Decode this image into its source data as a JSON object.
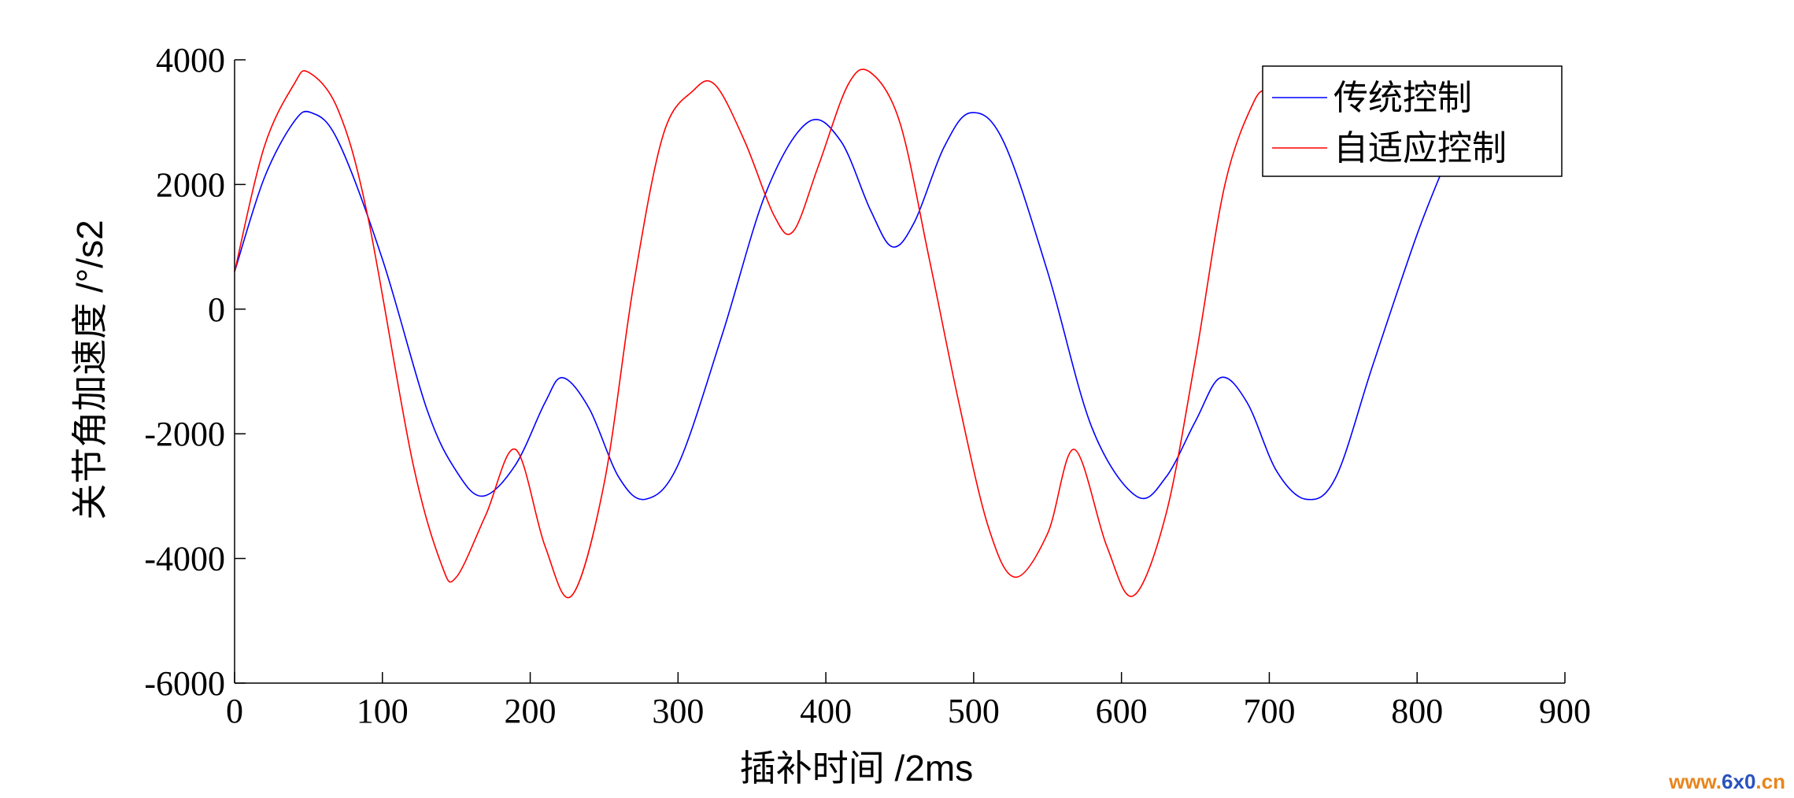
{
  "chart_data": {
    "type": "line",
    "xlabel": "插补时间  /2ms",
    "ylabel": "关节角加速度    /°/s2",
    "xlim": [
      0,
      900
    ],
    "ylim": [
      -6000,
      4000
    ],
    "xticks": [
      0,
      100,
      200,
      300,
      400,
      500,
      600,
      700,
      800,
      900
    ],
    "xtick_labels": [
      "0",
      "100",
      "200",
      "300",
      "400",
      "500",
      "600",
      "700",
      "800",
      "900"
    ],
    "yticks": [
      4000,
      2000,
      0,
      -2000,
      -4000,
      -6000
    ],
    "ytick_labels": [
      "4000",
      "2000",
      "0",
      "-2000",
      "-4000",
      "-6000"
    ],
    "grid": false,
    "legend_position": "top-right",
    "series": [
      {
        "name": "传统控制",
        "color": "#0000ff",
        "x": [
          0,
          20,
          40,
          52,
          70,
          100,
          130,
          150,
          168,
          190,
          210,
          222,
          240,
          260,
          278,
          300,
          330,
          360,
          388,
          410,
          430,
          445,
          460,
          480,
          498,
          520,
          550,
          580,
          610,
          630,
          650,
          667,
          685,
          705,
          725,
          745,
          770,
          800,
          820
        ],
        "y": [
          600,
          2100,
          3000,
          3150,
          2700,
          800,
          -1600,
          -2600,
          -3000,
          -2500,
          -1500,
          -1100,
          -1600,
          -2700,
          -3050,
          -2500,
          -400,
          1900,
          3000,
          2700,
          1600,
          1000,
          1400,
          2600,
          3150,
          2700,
          600,
          -1900,
          -3000,
          -2700,
          -1800,
          -1100,
          -1500,
          -2600,
          -3050,
          -2700,
          -900,
          1200,
          2400
        ]
      },
      {
        "name": "自适应控制",
        "color": "#ff0000",
        "x": [
          0,
          20,
          40,
          50,
          70,
          90,
          120,
          140,
          150,
          170,
          190,
          210,
          228,
          250,
          270,
          290,
          310,
          325,
          345,
          365,
          378,
          395,
          415,
          430,
          450,
          470,
          490,
          510,
          528,
          550,
          568,
          590,
          608,
          630,
          650,
          670,
          690,
          700
        ],
        "y": [
          600,
          2600,
          3600,
          3800,
          3200,
          1500,
          -2400,
          -4100,
          -4300,
          -3300,
          -2250,
          -3800,
          -4600,
          -2800,
          400,
          2800,
          3500,
          3600,
          2700,
          1500,
          1250,
          2300,
          3600,
          3800,
          3000,
          800,
          -1500,
          -3500,
          -4300,
          -3600,
          -2250,
          -3800,
          -4600,
          -3300,
          -800,
          2000,
          3350,
          3500
        ]
      }
    ]
  },
  "watermark": {
    "label": "www.6x0.cn",
    "part1": "www.",
    "part2": "6x0",
    "part3": ".cn",
    "accent_color": "#e8851c",
    "highlight_color": "#2a52be"
  }
}
